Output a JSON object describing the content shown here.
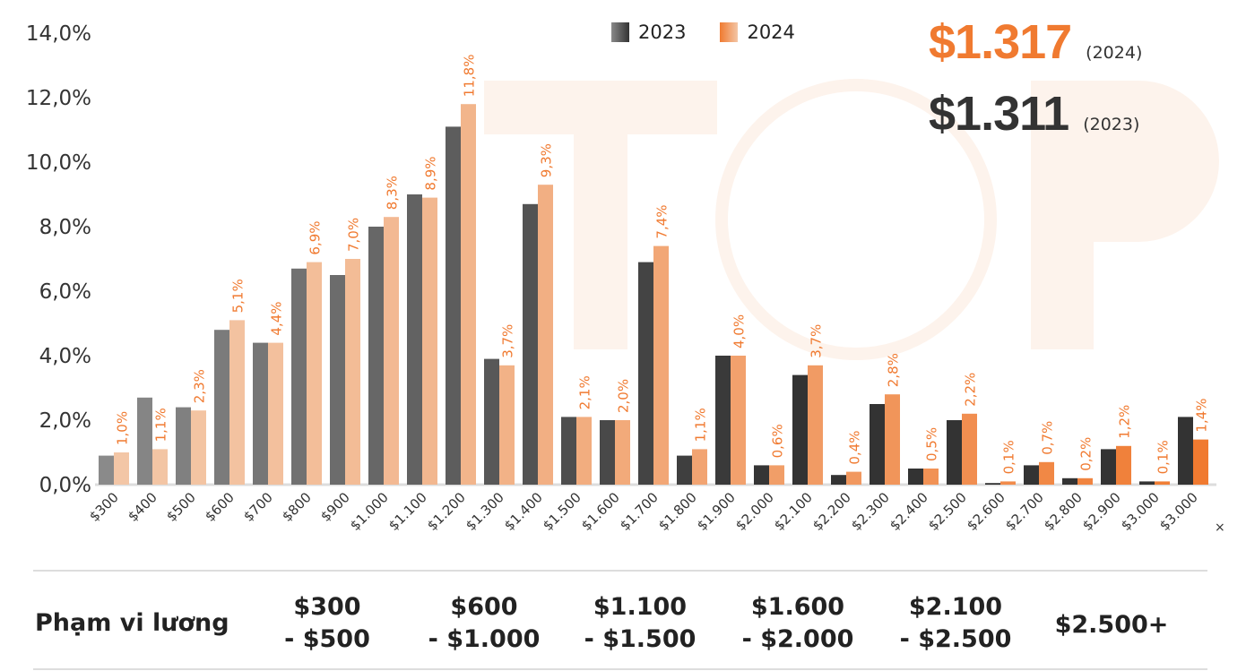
{
  "watermark": {
    "logo": "TOP",
    "url": "https://top"
  },
  "chart_data": {
    "type": "bar",
    "title": "",
    "xlabel": "",
    "ylabel": "",
    "ylim": [
      0,
      14
    ],
    "yticks": [
      "0,0%",
      "2,0%",
      "4,0%",
      "6,0%",
      "8,0%",
      "10,0%",
      "12,0%",
      "14,0%"
    ],
    "grid": false,
    "legend_placement": "top-center",
    "categories": [
      "$300",
      "$400",
      "$500",
      "$600",
      "$700",
      "$800",
      "$900",
      "$1.000",
      "$1.100",
      "$1.200",
      "$1.300",
      "$1.400",
      "$1.500",
      "$1.600",
      "$1.700",
      "$1.800",
      "$1.900",
      "$2.000",
      "$2.100",
      "$2.200",
      "$2.300",
      "$2.400",
      "$2.500",
      "$2.600",
      "$2.700",
      "$2.800",
      "$2.900",
      "$3.000",
      "$3.000"
    ],
    "trailing_mark": "×",
    "series": [
      {
        "name": "2023",
        "color_start": "#8a8a8a",
        "color_end": "#333333",
        "values": [
          0.9,
          2.7,
          2.4,
          4.8,
          4.4,
          6.7,
          6.5,
          8.0,
          9.0,
          11.1,
          3.9,
          8.7,
          2.1,
          2.0,
          6.9,
          0.9,
          4.0,
          0.6,
          3.4,
          0.3,
          2.5,
          0.5,
          2.0,
          0.05,
          0.6,
          0.2,
          1.1,
          0.1,
          2.1
        ]
      },
      {
        "name": "2024",
        "color_start": "#f3c6a6",
        "color_end": "#f07a30",
        "values": [
          1.0,
          1.1,
          2.3,
          5.1,
          4.4,
          6.9,
          7.0,
          8.3,
          8.9,
          11.8,
          3.7,
          9.3,
          2.1,
          2.0,
          7.4,
          1.1,
          4.0,
          0.6,
          3.7,
          0.4,
          2.8,
          0.5,
          2.2,
          0.1,
          0.7,
          0.2,
          1.2,
          0.1,
          1.4
        ],
        "labels": [
          "1,0%",
          "1,1%",
          "2,3%",
          "5,1%",
          "4,4%",
          "6,9%",
          "7,0%",
          "8,3%",
          "8,9%",
          "11,8%",
          "3,7%",
          "9,3%",
          "2,1%",
          "2,0%",
          "7,4%",
          "1,1%",
          "4,0%",
          "0,6%",
          "3,7%",
          "0,4%",
          "2,8%",
          "0,5%",
          "2,2%",
          "0,1%",
          "0,7%",
          "0,2%",
          "1,2%",
          "0,1%",
          "1,4%"
        ]
      }
    ],
    "label_color": "#f07a30"
  },
  "legend": [
    {
      "label": "2023",
      "color": "#333333"
    },
    {
      "label": "2024",
      "color": "#f07a30"
    }
  ],
  "averages": [
    {
      "value": "$1.317",
      "year": "(2024)",
      "color": "#f07a30"
    },
    {
      "value": "$1.311",
      "year": "(2023)",
      "color": "#333333"
    }
  ],
  "salary_table": {
    "label": "Phạm vi lương",
    "ranges": [
      "$300\n- $500",
      "$600\n- $1.000",
      "$1.100\n- $1.500",
      "$1.600\n- $2.000",
      "$2.100\n- $2.500",
      "$2.500+"
    ]
  }
}
